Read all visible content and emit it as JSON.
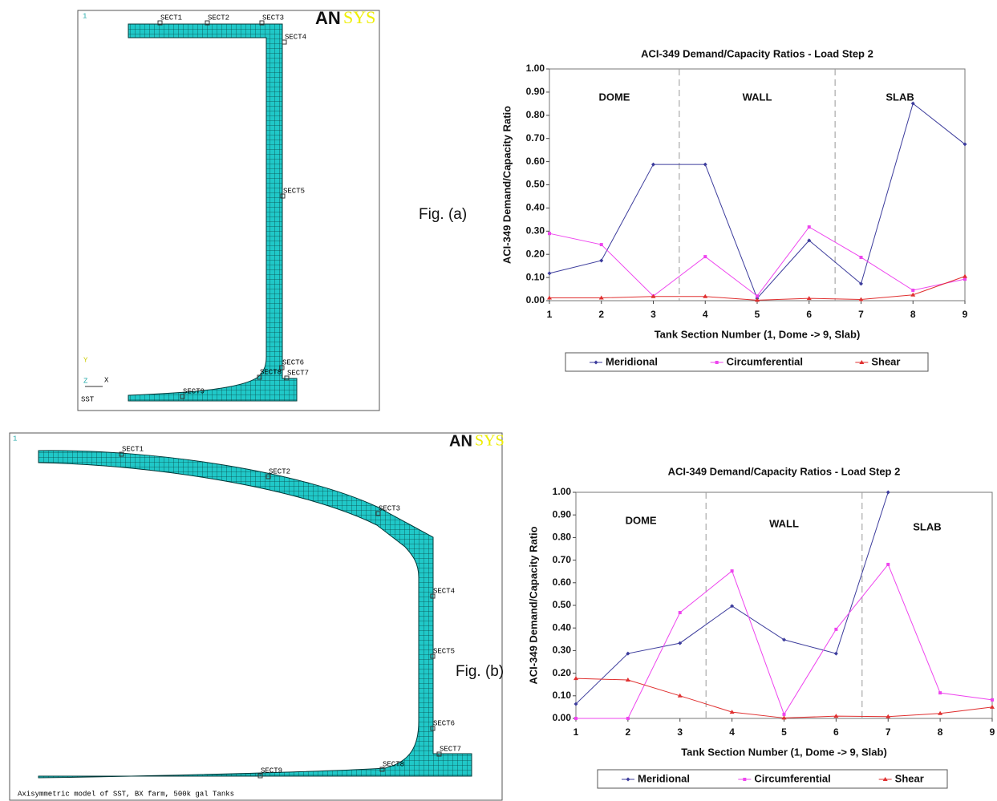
{
  "figure_a": {
    "caption": "Fig. (a)",
    "panel_number": "1",
    "logo": [
      "AN",
      "SYS"
    ],
    "sections": [
      "SECT1",
      "SECT2",
      "SECT3",
      "SECT4",
      "SECT5",
      "SECT6",
      "SECT7",
      "SECT8",
      "SECT9"
    ],
    "axes": [
      "Y",
      "Z",
      "X"
    ],
    "model_label": "SST"
  },
  "figure_b": {
    "caption": "Fig. (b)",
    "panel_number": "1",
    "logo": [
      "AN",
      "SYS"
    ],
    "sections": [
      "SECT1",
      "SECT2",
      "SECT3",
      "SECT4",
      "SECT5",
      "SECT6",
      "SECT7",
      "SECT8",
      "SECT9"
    ],
    "model_label": "Axisymmetric model of SST, BX farm, 500k gal Tanks"
  },
  "chart_data": [
    {
      "type": "line",
      "title": "ACI-349 Demand/Capacity Ratios - Load Step 2",
      "xlabel": "Tank Section Number (1, Dome -> 9, Slab)",
      "ylabel": "ACI-349 Demand/Capacity Ratio",
      "x": [
        1,
        2,
        3,
        4,
        5,
        6,
        7,
        8,
        9
      ],
      "xlim": [
        1,
        9
      ],
      "xticks": [
        1,
        2,
        3,
        4,
        5,
        6,
        7,
        8,
        9
      ],
      "ylim": [
        0,
        1
      ],
      "yticks": [
        {
          "value": 0,
          "label": "0.00"
        },
        {
          "value": 0.1,
          "label": "0.10"
        },
        {
          "value": 0.2,
          "label": "0.20"
        },
        {
          "value": 0.3,
          "label": "0.30"
        },
        {
          "value": 0.4,
          "label": "0.40"
        },
        {
          "value": 0.5,
          "label": "0.50"
        },
        {
          "value": 0.6,
          "label": "0.60"
        },
        {
          "value": 0.7,
          "label": "0.70"
        },
        {
          "value": 0.8,
          "label": "0.80"
        },
        {
          "value": 0.9,
          "label": "0.90"
        },
        {
          "value": 1,
          "label": "1.00"
        }
      ],
      "dividers": [
        3.5,
        6.5
      ],
      "annotations": [
        "DOME",
        "WALL",
        "SLAB"
      ],
      "legend": "bottom",
      "series": [
        {
          "name": "Meridional",
          "color": "#3c3c9c",
          "marker": "diamond",
          "values": [
            0.118,
            0.173,
            0.588,
            0.588,
            0.01,
            0.26,
            0.073,
            0.851,
            0.675
          ]
        },
        {
          "name": "Circumferential",
          "color": "#ee44ee",
          "marker": "square",
          "values": [
            0.29,
            0.242,
            0.02,
            0.19,
            0.02,
            0.318,
            0.187,
            0.045,
            0.093
          ]
        },
        {
          "name": "Shear",
          "color": "#e03030",
          "marker": "triangle",
          "values": [
            0.012,
            0.012,
            0.018,
            0.018,
            0.002,
            0.01,
            0.005,
            0.025,
            0.105
          ]
        }
      ]
    },
    {
      "type": "line",
      "title": "ACI-349 Demand/Capacity Ratios - Load Step 2",
      "xlabel": "Tank Section Number (1, Dome -> 9, Slab)",
      "ylabel": "ACI-349 Demand/Capacity Ratio",
      "x": [
        1,
        2,
        3,
        4,
        5,
        6,
        7,
        8,
        9
      ],
      "xlim": [
        1,
        9
      ],
      "xticks": [
        1,
        2,
        3,
        4,
        5,
        6,
        7,
        8,
        9
      ],
      "ylim": [
        0,
        1
      ],
      "yticks": [
        {
          "value": 0,
          "label": "0.00"
        },
        {
          "value": 0.1,
          "label": "0.10"
        },
        {
          "value": 0.2,
          "label": "0.20"
        },
        {
          "value": 0.3,
          "label": "0.30"
        },
        {
          "value": 0.4,
          "label": "0.40"
        },
        {
          "value": 0.5,
          "label": "0.50"
        },
        {
          "value": 0.6,
          "label": "0.60"
        },
        {
          "value": 0.7,
          "label": "0.70"
        },
        {
          "value": 0.8,
          "label": "0.80"
        },
        {
          "value": 0.9,
          "label": "0.90"
        },
        {
          "value": 1,
          "label": "1.00"
        }
      ],
      "dividers": [
        3.5,
        6.5
      ],
      "annotations": [
        "DOME",
        "WALL",
        "SLAB"
      ],
      "legend": "bottom",
      "series": [
        {
          "name": "Meridional",
          "color": "#3c3c9c",
          "marker": "diamond",
          "values": [
            0.064,
            0.287,
            0.333,
            0.497,
            0.348,
            0.287,
            1,
            null,
            null
          ]
        },
        {
          "name": "Circumferential",
          "color": "#ee44ee",
          "marker": "square",
          "values": [
            0,
            0,
            0.468,
            0.652,
            0.018,
            0.394,
            0.681,
            0.113,
            0.082
          ]
        },
        {
          "name": "Shear",
          "color": "#e03030",
          "marker": "triangle",
          "values": [
            0.177,
            0.17,
            0.1,
            0.028,
            0.002,
            0.01,
            0.008,
            0.022,
            0.05
          ]
        }
      ]
    }
  ]
}
